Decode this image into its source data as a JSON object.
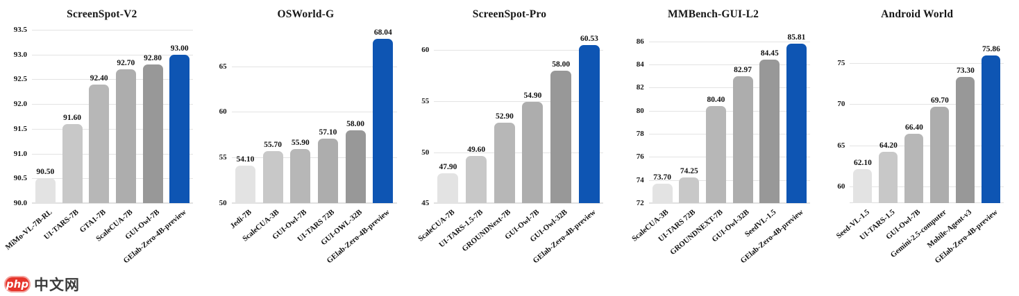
{
  "palette": {
    "bar_colors": [
      "#e3e3e3",
      "#c8c8c8",
      "#b7b7b7",
      "#adadad",
      "#989898",
      "#0e55b3"
    ],
    "grid_color": "#e3e3e3",
    "text_color": "#111111",
    "highlight_color": "#0e55b3"
  },
  "watermark": {
    "badge_text": "php",
    "site_text": "中文网",
    "badge_color": "#e6352b",
    "site_text_color": "#3b3b3b"
  },
  "chart_data": [
    {
      "type": "bar",
      "title": "ScreenSpot-V2",
      "categories": [
        "MiMo-VL-7B-RL",
        "UI-TARS-7B",
        "GTA1-7B",
        "ScaleCUA-7B",
        "GUI-Owl-7B",
        "GElab-Zero-4B-preview"
      ],
      "values": [
        90.5,
        91.6,
        92.4,
        92.7,
        92.8,
        93.0
      ],
      "value_labels": [
        "90.50",
        "91.60",
        "92.40",
        "92.70",
        "92.80",
        "93.00"
      ],
      "ylim": [
        90,
        93.5
      ],
      "yticks": [
        90.0,
        90.5,
        91.0,
        91.5,
        92.0,
        92.5,
        93.0,
        93.5
      ],
      "ytick_labels": [
        "90.0",
        "90.5",
        "91.0",
        "91.5",
        "92.0",
        "92.5",
        "93.0",
        "93.5"
      ],
      "grid": true,
      "legend": false,
      "highlight_index": 5
    },
    {
      "type": "bar",
      "title": "OSWorld-G",
      "categories": [
        "Jedi-7B",
        "ScaleCUA-3B",
        "GUI-Owl-7B",
        "UI-TARS 72B",
        "GUI-OWL-32B",
        "GElab-Zero-4B-preview"
      ],
      "values": [
        54.1,
        55.7,
        55.9,
        57.1,
        58.0,
        68.04
      ],
      "value_labels": [
        "54.10",
        "55.70",
        "55.90",
        "57.10",
        "58.00",
        "68.04"
      ],
      "ylim": [
        50,
        69
      ],
      "yticks": [
        50,
        55,
        60,
        65
      ],
      "ytick_labels": [
        "50",
        "55",
        "60",
        "65"
      ],
      "grid": true,
      "legend": false,
      "highlight_index": 5
    },
    {
      "type": "bar",
      "title": "ScreenSpot-Pro",
      "categories": [
        "ScaleCUA-7B",
        "UI-TARS-1.5-7B",
        "GROUNDNext-7B",
        "GUI-Owl-7B",
        "GUI-Owl-32B",
        "GElab-Zero-4B-preview"
      ],
      "values": [
        47.9,
        49.6,
        52.9,
        54.9,
        58.0,
        60.53
      ],
      "value_labels": [
        "47.90",
        "49.60",
        "52.90",
        "54.90",
        "58.00",
        "60.53"
      ],
      "ylim": [
        45,
        62
      ],
      "yticks": [
        45,
        50,
        55,
        60
      ],
      "ytick_labels": [
        "45",
        "50",
        "55",
        "60"
      ],
      "grid": true,
      "legend": false,
      "highlight_index": 5
    },
    {
      "type": "bar",
      "title": "MMBench-GUI-L2",
      "categories": [
        "ScaleCUA-3B",
        "UI-TARS 72B",
        "GROUNDNEXT-7B",
        "GUI-Owl-32B",
        "SeedVL-1.5",
        "GElab-Zero-4B-preview"
      ],
      "values": [
        73.7,
        74.25,
        80.4,
        82.97,
        84.45,
        85.81
      ],
      "value_labels": [
        "73.70",
        "74.25",
        "80.40",
        "82.97",
        "84.45",
        "85.81"
      ],
      "ylim": [
        72,
        87
      ],
      "yticks": [
        72,
        74,
        76,
        78,
        80,
        82,
        84,
        86
      ],
      "ytick_labels": [
        "72",
        "74",
        "76",
        "78",
        "80",
        "82",
        "84",
        "86"
      ],
      "grid": true,
      "legend": false,
      "highlight_index": 5
    },
    {
      "type": "bar",
      "title": "Android World",
      "categories": [
        "Seed-VL-1.5",
        "UI-TARS-1.5",
        "GUI-Owl-7B",
        "Gemini-2.5-computer",
        "Mobile-Agent-v3",
        "GElab-Zero-4B-preview"
      ],
      "values": [
        62.1,
        64.2,
        66.4,
        69.7,
        73.3,
        75.86
      ],
      "value_labels": [
        "62.10",
        "64.20",
        "66.40",
        "69.70",
        "73.30",
        "75.86"
      ],
      "ylim": [
        58,
        79
      ],
      "yticks": [
        60,
        65,
        70,
        75
      ],
      "ytick_labels": [
        "60",
        "65",
        "70",
        "75"
      ],
      "grid": true,
      "legend": false,
      "highlight_index": 5
    }
  ]
}
